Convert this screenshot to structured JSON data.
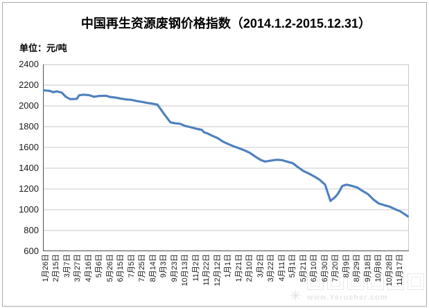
{
  "chart_data": {
    "type": "line",
    "title": "中国再生资源废钢价格指数（2014.1.2-2015.12.31）",
    "unit_label": "单位：元/吨",
    "ylabel": "元/吨",
    "ylim": [
      600,
      2400
    ],
    "yticks": [
      2400,
      2200,
      2000,
      1800,
      1600,
      1400,
      1200,
      1000,
      800,
      600
    ],
    "x_tick_labels": [
      "1月26日",
      "2月15日",
      "3月7日",
      "3月27日",
      "4月16日",
      "5月6日",
      "5月26日",
      "6月15日",
      "7月5日",
      "7月25日",
      "8月14日",
      "9月3日",
      "9月23日",
      "10月13日",
      "11月2日",
      "11月22日",
      "12月12日",
      "1月1日",
      "1月21日",
      "2月10日",
      "3月2日",
      "3月22日",
      "4月11日",
      "5月1日",
      "5月21日",
      "6月10日",
      "6月30日",
      "7月20日",
      "8月9日",
      "8月29日",
      "9月18日",
      "10月8日",
      "10月28日",
      "11月17日"
    ],
    "grid": "horizontal-only",
    "legend": "none",
    "line_color": "#4f81bd",
    "axis_color": "#595959",
    "grid_color": "#c9c9c9",
    "series": [
      {
        "name": "废钢价格指数",
        "points": [
          [
            -0.25,
            2150
          ],
          [
            0,
            2148
          ],
          [
            0.4,
            2144
          ],
          [
            0.7,
            2132
          ],
          [
            1,
            2140
          ],
          [
            1.5,
            2128
          ],
          [
            1.8,
            2095
          ],
          [
            2,
            2080
          ],
          [
            2.3,
            2065
          ],
          [
            2.9,
            2068
          ],
          [
            3.1,
            2102
          ],
          [
            3.5,
            2108
          ],
          [
            4,
            2104
          ],
          [
            4.5,
            2088
          ],
          [
            5,
            2096
          ],
          [
            5.6,
            2098
          ],
          [
            6,
            2086
          ],
          [
            6.5,
            2080
          ],
          [
            7,
            2070
          ],
          [
            7.5,
            2062
          ],
          [
            8,
            2058
          ],
          [
            8.5,
            2046
          ],
          [
            9,
            2038
          ],
          [
            9.5,
            2028
          ],
          [
            10,
            2020
          ],
          [
            10.4,
            2012
          ],
          [
            11,
            1925
          ],
          [
            11.6,
            1842
          ],
          [
            12,
            1833
          ],
          [
            12.5,
            1828
          ],
          [
            13,
            1806
          ],
          [
            13.5,
            1795
          ],
          [
            14,
            1780
          ],
          [
            14.5,
            1770
          ],
          [
            14.8,
            1742
          ],
          [
            15,
            1738
          ],
          [
            15.5,
            1712
          ],
          [
            16,
            1690
          ],
          [
            16.5,
            1655
          ],
          [
            17,
            1632
          ],
          [
            17.5,
            1610
          ],
          [
            18,
            1592
          ],
          [
            18.5,
            1572
          ],
          [
            19,
            1548
          ],
          [
            19.5,
            1512
          ],
          [
            20,
            1480
          ],
          [
            20.4,
            1464
          ],
          [
            21,
            1474
          ],
          [
            21.5,
            1481
          ],
          [
            22,
            1477
          ],
          [
            22.5,
            1462
          ],
          [
            23,
            1448
          ],
          [
            23.5,
            1408
          ],
          [
            24,
            1372
          ],
          [
            24.5,
            1348
          ],
          [
            25,
            1320
          ],
          [
            25.5,
            1288
          ],
          [
            26,
            1242
          ],
          [
            26.3,
            1148
          ],
          [
            26.5,
            1085
          ],
          [
            26.75,
            1105
          ],
          [
            27,
            1128
          ],
          [
            27.25,
            1162
          ],
          [
            27.6,
            1228
          ],
          [
            28,
            1241
          ],
          [
            28.4,
            1232
          ],
          [
            29,
            1214
          ],
          [
            29.5,
            1180
          ],
          [
            30,
            1150
          ],
          [
            30.5,
            1098
          ],
          [
            31,
            1060
          ],
          [
            31.5,
            1044
          ],
          [
            32,
            1030
          ],
          [
            32.5,
            1006
          ],
          [
            33,
            985
          ],
          [
            33.4,
            958
          ],
          [
            33.7,
            936
          ]
        ]
      }
    ]
  },
  "watermark": {
    "url_text": "www.Yerusher.com",
    "star_glyph": "✳"
  }
}
